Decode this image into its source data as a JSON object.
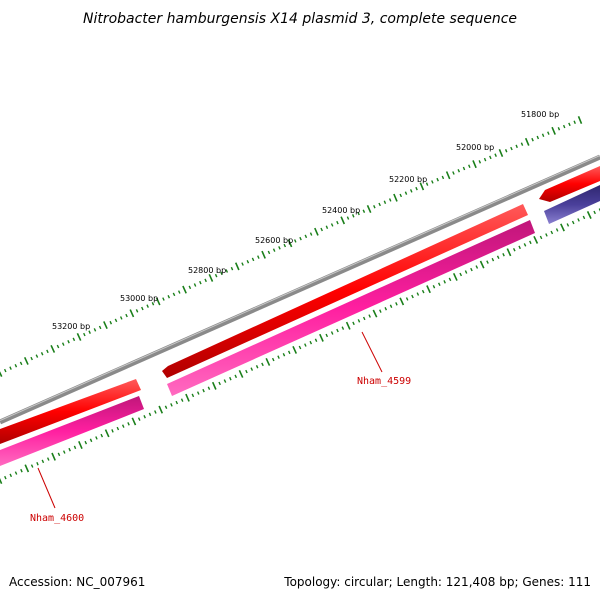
{
  "title": "Nitrobacter hamburgensis X14 plasmid 3, complete sequence",
  "footer": {
    "accession": "Accession: NC_007961",
    "summary": "Topology: circular; Length: 121,408 bp; Genes: 111"
  },
  "tick_labels": [
    "51800 bp",
    "52000 bp",
    "52200 bp",
    "52400 bp",
    "52600 bp",
    "52800 bp",
    "53000 bp",
    "53200 bp"
  ],
  "genes": [
    {
      "id": "Nham_4599",
      "color": "#ff1fa0"
    },
    {
      "id": "Nham_4600",
      "color": "#ff1fa0"
    }
  ],
  "colors": {
    "backbone": "#8a8a8a",
    "cds": "#ff0000",
    "gene": "#ff1fa0",
    "blue_feature": "#4a3f9a",
    "ticks": "#1a7f1a",
    "label": "#cc0000"
  }
}
